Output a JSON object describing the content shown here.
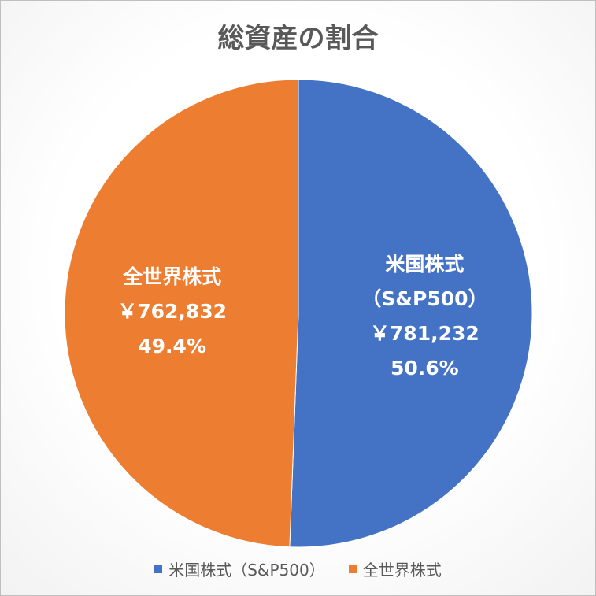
{
  "chart_data": {
    "type": "pie",
    "title": "総資産の割合",
    "series": [
      {
        "name": "米国株式（S&P500）",
        "label_lines": [
          "米国株式",
          "（S&P500）"
        ],
        "value": 781232,
        "value_label": "￥781,232",
        "percent": 50.6,
        "percent_label": "50.6%",
        "color": "#4472C4"
      },
      {
        "name": "全世界株式",
        "label_lines": [
          "全世界株式"
        ],
        "value": 762832,
        "value_label": "￥762,832",
        "percent": 49.4,
        "percent_label": "49.4%",
        "color": "#ED7D31"
      }
    ],
    "legend": "bottom"
  }
}
